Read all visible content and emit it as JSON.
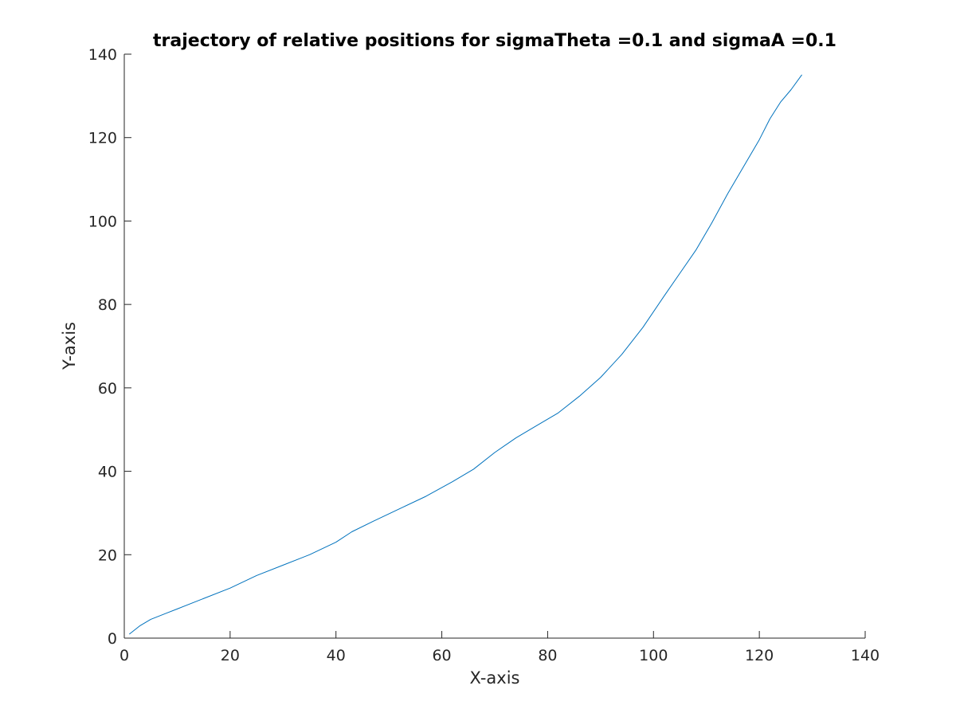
{
  "chart_data": {
    "type": "line",
    "title": "trajectory of relative positions for sigmaTheta =0.1 and sigmaA =0.1",
    "xlabel": "X-axis",
    "ylabel": "Y-axis",
    "xlim": [
      0,
      140
    ],
    "ylim": [
      0,
      140
    ],
    "xticks": [
      0,
      20,
      40,
      60,
      80,
      100,
      120,
      140
    ],
    "yticks": [
      0,
      20,
      40,
      60,
      80,
      100,
      120,
      140
    ],
    "grid": false,
    "series": [
      {
        "color": "#0072BD",
        "x": [
          1,
          3,
          5,
          8,
          10,
          15,
          20,
          25,
          30,
          35,
          40,
          43,
          47,
          52,
          57,
          62,
          66,
          70,
          74,
          78,
          82,
          86,
          90,
          94,
          98,
          102,
          105,
          108,
          111,
          114,
          117,
          120,
          122,
          124,
          126,
          128
        ],
        "y": [
          1,
          3,
          4.5,
          6,
          7,
          9.5,
          12,
          15,
          17.5,
          20,
          23,
          25.5,
          28,
          31,
          34,
          37.5,
          40.5,
          44.5,
          48,
          51,
          54,
          58,
          62.5,
          68,
          74.5,
          82,
          87.5,
          93,
          99.5,
          106.5,
          113,
          119.5,
          124.5,
          128.5,
          131.5,
          135
        ]
      }
    ]
  }
}
